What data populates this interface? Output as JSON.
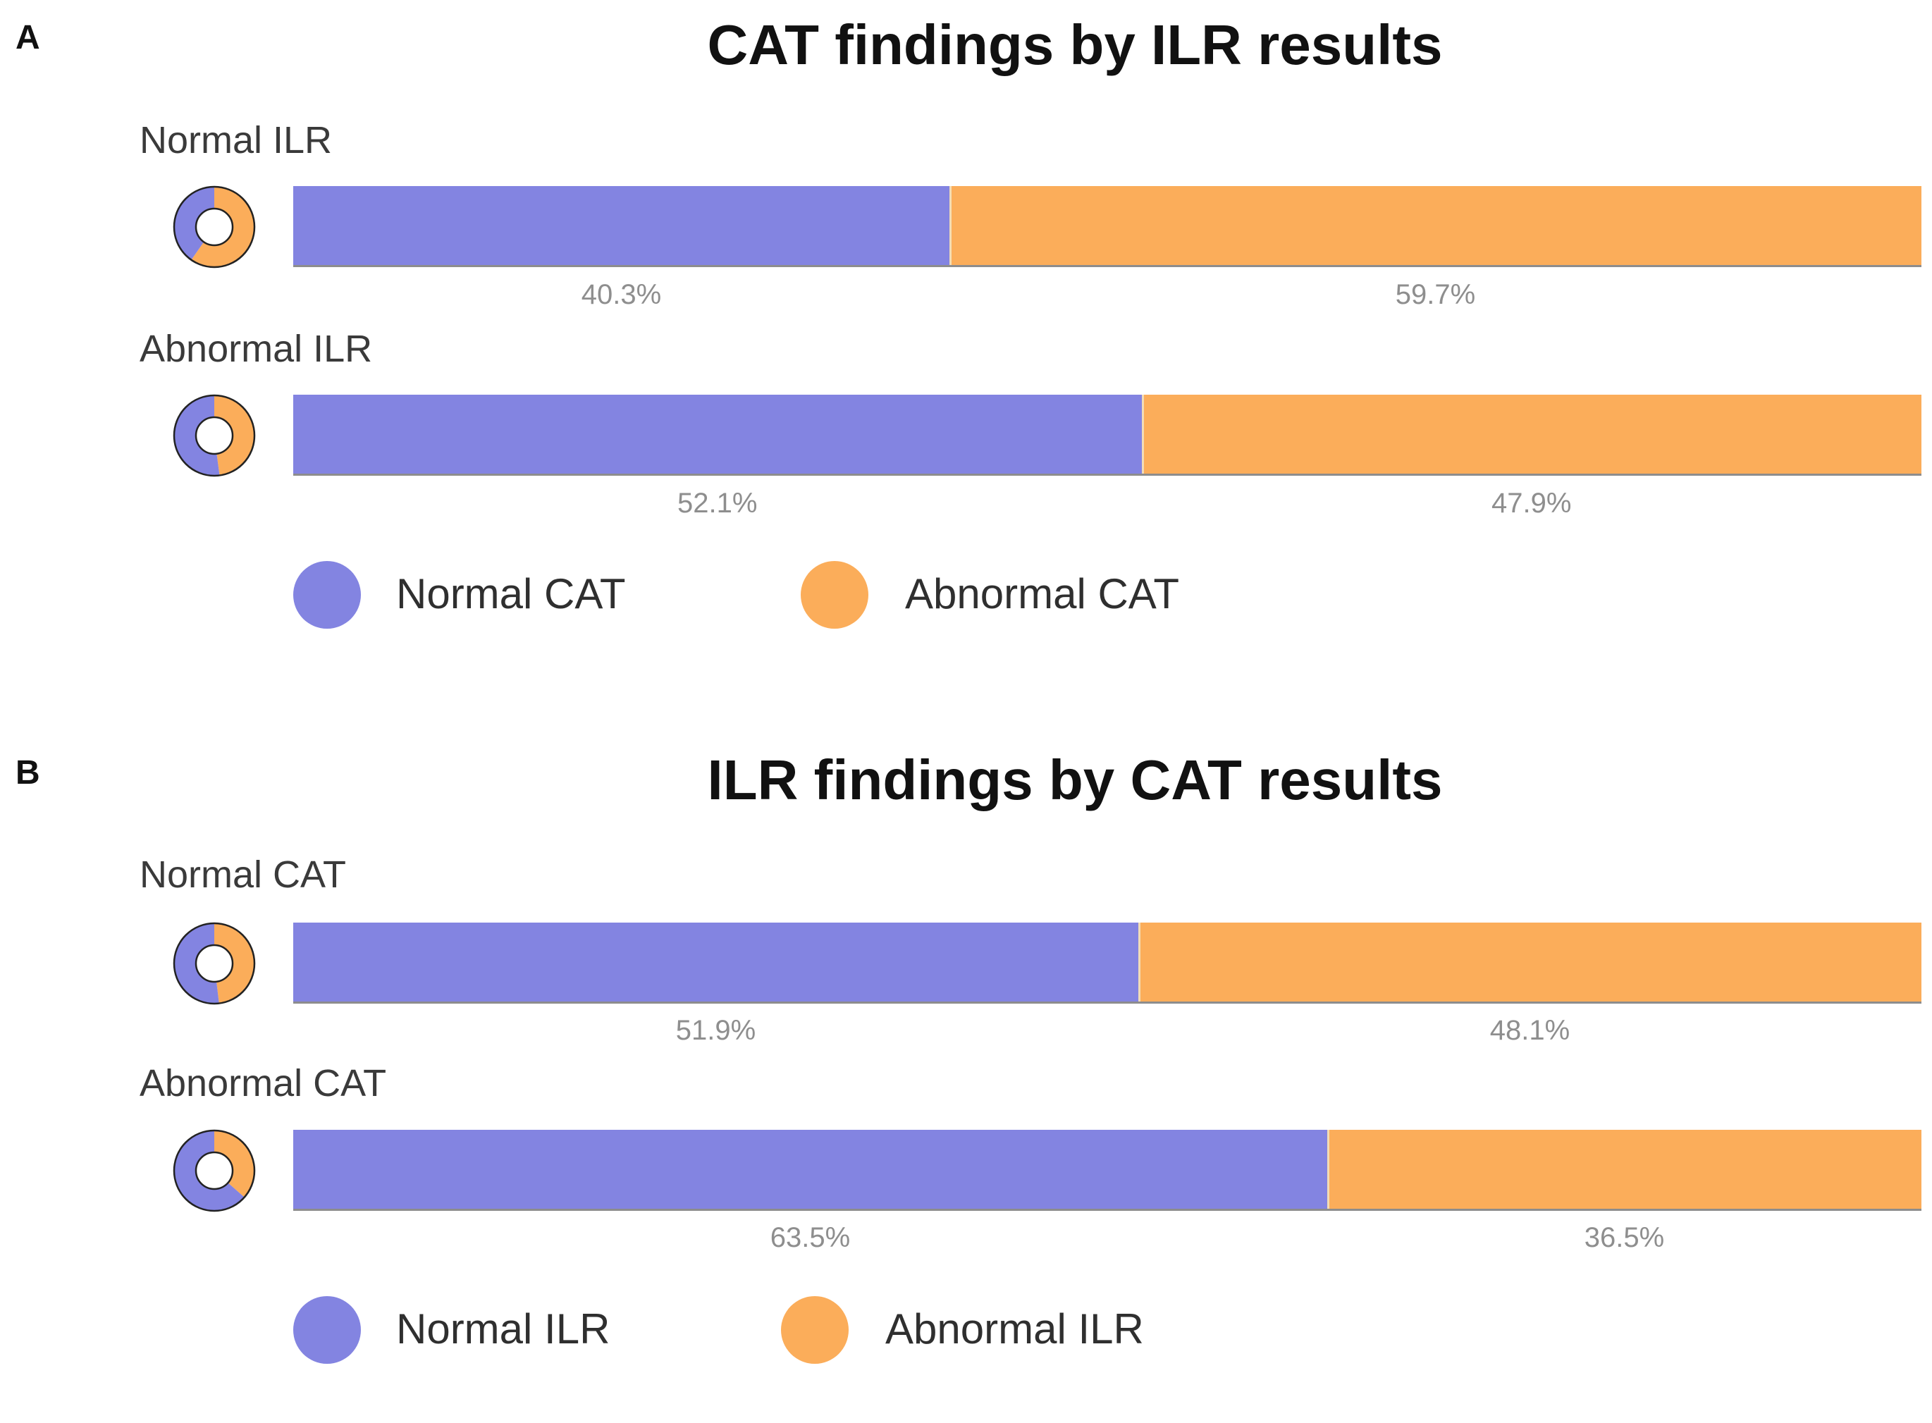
{
  "colors": {
    "normal": "#8384e1",
    "abnormal": "#fbad5a"
  },
  "chart_data": [
    {
      "type": "bar",
      "panel": "A",
      "title": "CAT findings by ILR results",
      "categories": [
        "Normal ILR",
        "Abnormal ILR"
      ],
      "series": [
        {
          "name": "Normal CAT",
          "values": [
            40.3,
            52.1
          ],
          "labels": [
            "40.3%",
            "52.1%"
          ]
        },
        {
          "name": "Abnormal CAT",
          "values": [
            59.7,
            47.9
          ],
          "labels": [
            "59.7%",
            "47.9%"
          ]
        }
      ],
      "stacked": true,
      "orientation": "horizontal",
      "unit": "%",
      "legend_position": "bottom"
    },
    {
      "type": "bar",
      "panel": "B",
      "title": "ILR findings by CAT results",
      "categories": [
        "Normal CAT",
        "Abnormal CAT"
      ],
      "series": [
        {
          "name": "Normal ILR",
          "values": [
            51.9,
            63.5
          ],
          "labels": [
            "51.9%",
            "63.5%"
          ]
        },
        {
          "name": "Abnormal ILR",
          "values": [
            48.1,
            36.5
          ],
          "labels": [
            "48.1%",
            "36.5%"
          ]
        }
      ],
      "stacked": true,
      "orientation": "horizontal",
      "unit": "%",
      "legend_position": "bottom"
    }
  ]
}
